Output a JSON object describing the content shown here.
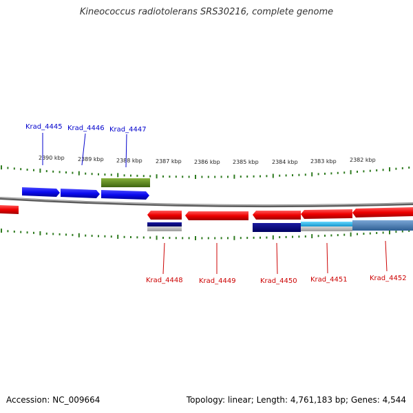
{
  "title": "Kineococcus radiotolerans SRS30216, complete genome",
  "footer": {
    "accession": "Accession: NC_009664",
    "summary": "Topology: linear; Length: 4,761,183 bp; Genes: 4,544"
  },
  "colors": {
    "forward_gene": "#1010ff",
    "reverse_gene": "#ff0000",
    "forward_label": "#0000cc",
    "reverse_label": "#cc0000",
    "tick": "#2d7a1e",
    "backbone": "#777777",
    "olive_feature": "#5f8a1e",
    "navy_feature": "#00007a",
    "cyan_feature": "#22bbee",
    "steel_feature": "#4a7fb5"
  },
  "scale_ticks": [
    "2390 kbp",
    "2389 kbp",
    "2388 kbp",
    "2387 kbp",
    "2386 kbp",
    "2385 kbp",
    "2384 kbp",
    "2383 kbp",
    "2382 kbp"
  ],
  "forward_genes": [
    "Krad_4445",
    "Krad_4446",
    "Krad_4447"
  ],
  "reverse_genes": [
    "Krad_4448",
    "Krad_4449",
    "Krad_4450",
    "Krad_4451",
    "Krad_4452"
  ]
}
